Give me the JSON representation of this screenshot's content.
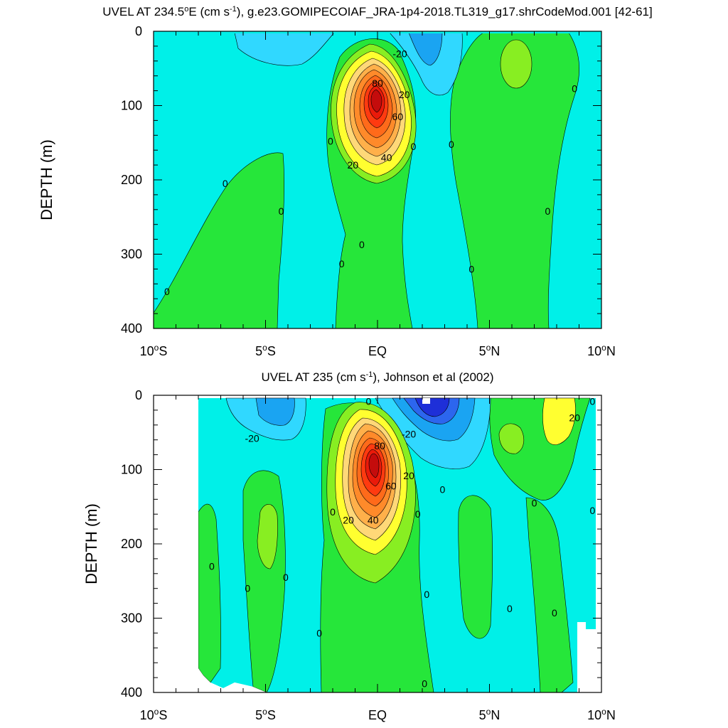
{
  "chart_data": [
    {
      "type": "heatmap",
      "subtype": "filled-contour",
      "title_parts": [
        "UVEL AT 234.5",
        "o",
        "E (cm s",
        "-1",
        "), g.e23.GOMIPECOIAF_JRA-1p4-2018.TL319_g17.shrCodeMod.001 [42-61]"
      ],
      "ylabel": "DEPTH (m)",
      "xlim": [
        -10,
        10
      ],
      "ylim": [
        400,
        0
      ],
      "y_ticks": [
        0,
        100,
        200,
        300,
        400
      ],
      "x_ticks": [
        {
          "value": -10,
          "num": "10",
          "deg": "o",
          "hemi": "S"
        },
        {
          "value": -5,
          "num": "5",
          "deg": "o",
          "hemi": "S"
        },
        {
          "value": 0,
          "num": "EQ",
          "deg": "",
          "hemi": ""
        },
        {
          "value": 5,
          "num": "5",
          "deg": "o",
          "hemi": "N"
        },
        {
          "value": 10,
          "num": "10",
          "deg": "o",
          "hemi": "N"
        }
      ],
      "contour_labels": [
        {
          "text": "-20",
          "lat": 1.0,
          "depth": 30
        },
        {
          "text": "80",
          "lat": 0.0,
          "depth": 70
        },
        {
          "text": "20",
          "lat": 1.2,
          "depth": 85
        },
        {
          "text": "60",
          "lat": 0.9,
          "depth": 115
        },
        {
          "text": "40",
          "lat": 0.4,
          "depth": 170
        },
        {
          "text": "20",
          "lat": -1.1,
          "depth": 180
        },
        {
          "text": "0",
          "lat": -2.1,
          "depth": 148
        },
        {
          "text": "0",
          "lat": 1.6,
          "depth": 155
        },
        {
          "text": "0",
          "lat": 3.3,
          "depth": 152
        },
        {
          "text": "0",
          "lat": 8.8,
          "depth": 77
        },
        {
          "text": "0",
          "lat": -6.8,
          "depth": 205
        },
        {
          "text": "0",
          "lat": -4.3,
          "depth": 242
        },
        {
          "text": "0",
          "lat": 7.6,
          "depth": 242
        },
        {
          "text": "0",
          "lat": -0.7,
          "depth": 287
        },
        {
          "text": "0",
          "lat": -1.6,
          "depth": 313
        },
        {
          "text": "0",
          "lat": 4.2,
          "depth": 320
        },
        {
          "text": "0",
          "lat": -9.4,
          "depth": 350
        }
      ]
    },
    {
      "type": "heatmap",
      "subtype": "filled-contour",
      "title_parts": [
        "UVEL AT 235 (cm s",
        "-1",
        "), Johnson et al (2002)"
      ],
      "ylabel": "DEPTH (m)",
      "xlim": [
        -10,
        10
      ],
      "ylim": [
        400,
        0
      ],
      "y_ticks": [
        0,
        100,
        200,
        300,
        400
      ],
      "x_ticks": [
        {
          "value": -10,
          "num": "10",
          "deg": "o",
          "hemi": "S"
        },
        {
          "value": -5,
          "num": "5",
          "deg": "o",
          "hemi": "S"
        },
        {
          "value": 0,
          "num": "EQ",
          "deg": "",
          "hemi": ""
        },
        {
          "value": 5,
          "num": "5",
          "deg": "o",
          "hemi": "N"
        },
        {
          "value": 10,
          "num": "10",
          "deg": "o",
          "hemi": "N"
        }
      ],
      "contour_labels": [
        {
          "text": "0",
          "lat": -0.4,
          "depth": 8
        },
        {
          "text": "-20",
          "lat": -5.6,
          "depth": 58
        },
        {
          "text": "-20",
          "lat": 1.4,
          "depth": 52
        },
        {
          "text": "80",
          "lat": 0.1,
          "depth": 68
        },
        {
          "text": "20",
          "lat": 1.4,
          "depth": 108
        },
        {
          "text": "60",
          "lat": 0.6,
          "depth": 122
        },
        {
          "text": "0",
          "lat": 2.9,
          "depth": 127
        },
        {
          "text": "0",
          "lat": 7.0,
          "depth": 145
        },
        {
          "text": "0",
          "lat": -2.0,
          "depth": 157
        },
        {
          "text": "0",
          "lat": 1.8,
          "depth": 160
        },
        {
          "text": "0",
          "lat": 9.6,
          "depth": 155
        },
        {
          "text": "20",
          "lat": -1.3,
          "depth": 168
        },
        {
          "text": "40",
          "lat": -0.2,
          "depth": 168
        },
        {
          "text": "20",
          "lat": 8.8,
          "depth": 30
        },
        {
          "text": "0",
          "lat": 9.6,
          "depth": 8
        },
        {
          "text": "0",
          "lat": -7.4,
          "depth": 230
        },
        {
          "text": "0",
          "lat": -5.8,
          "depth": 260
        },
        {
          "text": "0",
          "lat": -4.1,
          "depth": 245
        },
        {
          "text": "0",
          "lat": 2.2,
          "depth": 268
        },
        {
          "text": "0",
          "lat": 5.9,
          "depth": 287
        },
        {
          "text": "0",
          "lat": 7.9,
          "depth": 293
        },
        {
          "text": "0",
          "lat": -2.6,
          "depth": 320
        },
        {
          "text": "0",
          "lat": 2.1,
          "depth": 388
        }
      ]
    }
  ],
  "colors": {
    "vdeep_blue": "#1e2fd8",
    "deep_blue": "#2c66ee",
    "blue": "#1aa4f2",
    "light_blue": "#30d8ff",
    "cyan": "#00f0e8",
    "aqua_green": "#22ee90",
    "green": "#26e63a",
    "lime": "#88ee22",
    "yellow": "#ffff30",
    "light_orange": "#ffd878",
    "orange1": "#ffb04a",
    "orange2": "#ff8a2a",
    "orange3": "#ff6a1a",
    "red1": "#ff3a10",
    "red2": "#ea1a0a",
    "dark_red": "#c40c0c",
    "frame": "#000000"
  }
}
